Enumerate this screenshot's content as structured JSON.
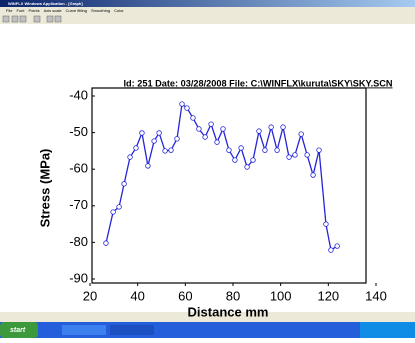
{
  "window": {
    "title": "WINFLX Windows Application - [Graph]",
    "menu": [
      "File",
      "Font",
      "Points",
      "Axis scale",
      "Curve fitting",
      "Smoothing",
      "Color"
    ]
  },
  "chart_data": {
    "type": "line",
    "title": "Id: 251 Date: 03/28/2008 File: C:\\WINFLX\\kuruta\\SKY\\SKY.SCN",
    "xlabel": "Distance mm",
    "ylabel": "Stress (MPa)",
    "x": [
      26.7,
      29.7,
      32.2,
      34.3,
      36.8,
      39.3,
      41.8,
      44.3,
      46.9,
      49,
      51.5,
      54,
      56.5,
      58.6,
      60.7,
      63.2,
      65.7,
      68.3,
      70.8,
      73.3,
      75.8,
      78.3,
      80.8,
      83.4,
      85.9,
      88.4,
      90.9,
      93.4,
      96,
      98.5,
      101,
      103.5,
      106,
      108.6,
      111.1,
      113.6,
      116.1,
      119,
      121.1,
      123.7
    ],
    "values": [
      -80.2,
      -71.7,
      -70.3,
      -64,
      -56.7,
      -54.2,
      -50.1,
      -59.1,
      -52.3,
      -50.1,
      -55,
      -54.8,
      -51.7,
      -42.2,
      -43.3,
      -46,
      -49,
      -51.2,
      -47.7,
      -52.6,
      -49,
      -54.8,
      -57.5,
      -54.2,
      -59.4,
      -57.5,
      -49.6,
      -54.8,
      -48.5,
      -54.8,
      -48.5,
      -56.7,
      -56.1,
      -50.4,
      -56.1,
      -61.6,
      -54.8,
      -75,
      -82.1,
      -81
    ],
    "color": "#2424d8",
    "xlim": [
      20,
      140
    ],
    "xticks": [
      20,
      40,
      60,
      80,
      100,
      120,
      140
    ],
    "ylim": [
      -90,
      -40
    ],
    "yticks": [
      -40,
      -50,
      -60,
      -70,
      -80,
      -90
    ]
  },
  "taskbar": {
    "start": "start"
  }
}
